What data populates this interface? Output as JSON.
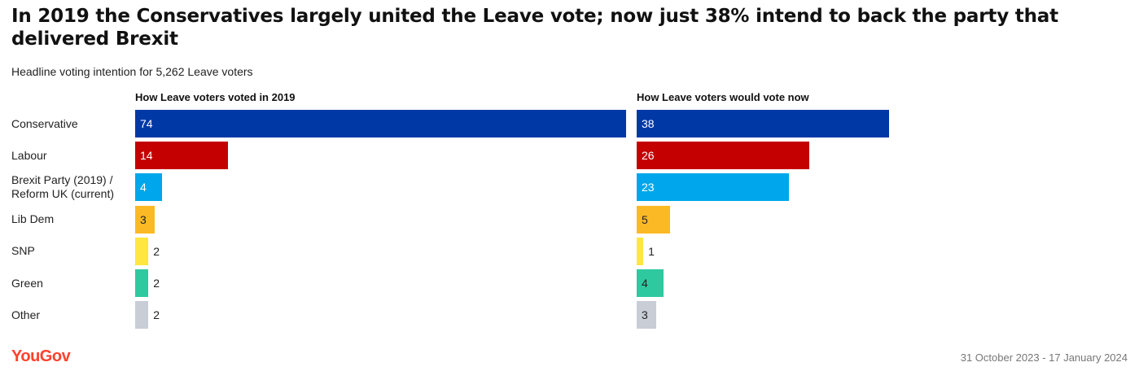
{
  "title": "In 2019 the Conservatives largely united the Leave vote; now just 38% intend to back the party that delivered Brexit",
  "subtitle": "Headline voting intention for 5,262 Leave voters",
  "footer": {
    "brand": "YouGov",
    "date_range": "31 October 2023 - 17 January 2024"
  },
  "chart_data": {
    "type": "bar",
    "orientation": "horizontal",
    "categories": [
      [
        "Conservative"
      ],
      [
        "Labour"
      ],
      [
        "Brexit Party (2019) /",
        "Reform UK (current)"
      ],
      [
        "Lib Dem"
      ],
      [
        "SNP"
      ],
      [
        "Green"
      ],
      [
        "Other"
      ]
    ],
    "colors": [
      "#0039a6",
      "#c40000",
      "#00a6eb",
      "#fbb925",
      "#ffe640",
      "#2fc9a0",
      "#c9cdd6"
    ],
    "label_colors": [
      "#ffffff",
      "#ffffff",
      "#ffffff",
      "#222222",
      "#222222",
      "#222222",
      "#222222"
    ],
    "series": [
      {
        "name": "How Leave voters voted in 2019",
        "values": [
          74,
          14,
          4,
          3,
          2,
          2,
          2
        ]
      },
      {
        "name": "How Leave voters would vote now",
        "values": [
          38,
          26,
          23,
          5,
          1,
          4,
          3
        ]
      }
    ]
  }
}
